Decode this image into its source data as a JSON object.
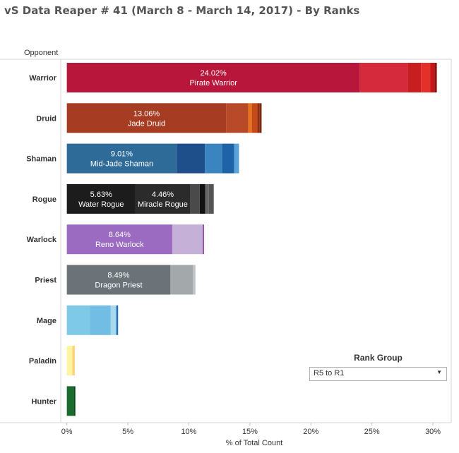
{
  "title": "vS Data Reaper # 41 (March 8 - March 14, 2017) - By Ranks",
  "rank_group": {
    "title": "Rank Group",
    "selected": "R5 to R1",
    "caret_icon": "chevron-down-icon"
  },
  "chart_data": {
    "type": "bar",
    "orientation": "horizontal",
    "stacked": true,
    "ylabel": "Opponent",
    "xlabel": "% of Total Count",
    "xlim": [
      -0.5,
      31.5
    ],
    "xticks": [
      0,
      5,
      10,
      15,
      20,
      25,
      30
    ],
    "xtick_labels": [
      "0%",
      "5%",
      "10%",
      "15%",
      "20%",
      "25%",
      "30%"
    ],
    "grid": false,
    "categories": [
      "Warrior",
      "Druid",
      "Shaman",
      "Rogue",
      "Warlock",
      "Priest",
      "Mage",
      "Paladin",
      "Hunter"
    ],
    "bars": [
      {
        "category": "Warrior",
        "segments": [
          {
            "value": 24.02,
            "color": "#b8163a",
            "value_label": "24.02%",
            "name": "Pirate Warrior"
          },
          {
            "value": 3.9,
            "color": "#d42a3c"
          },
          {
            "value": 1.1,
            "color": "#c71f1f"
          },
          {
            "value": 0.75,
            "color": "#e3302a"
          },
          {
            "value": 0.35,
            "color": "#c41818"
          },
          {
            "value": 0.2,
            "color": "#8a1010"
          }
        ]
      },
      {
        "category": "Druid",
        "segments": [
          {
            "value": 13.06,
            "color": "#a63d22",
            "value_label": "13.06%",
            "name": "Jade Druid"
          },
          {
            "value": 1.8,
            "color": "#b84a2a"
          },
          {
            "value": 0.3,
            "color": "#e5731e"
          },
          {
            "value": 0.45,
            "color": "#c44a1a"
          },
          {
            "value": 0.2,
            "color": "#922e10"
          },
          {
            "value": 0.15,
            "color": "#7a2a10"
          }
        ]
      },
      {
        "category": "Shaman",
        "segments": [
          {
            "value": 9.01,
            "color": "#2e6b99",
            "value_label": "9.01%",
            "name": "Mid-Jade Shaman"
          },
          {
            "value": 2.3,
            "color": "#1f4f8a"
          },
          {
            "value": 1.4,
            "color": "#3a85c0"
          },
          {
            "value": 1.0,
            "color": "#1e63a8"
          },
          {
            "value": 0.4,
            "color": "#5ba3d6"
          }
        ]
      },
      {
        "category": "Rogue",
        "segments": [
          {
            "value": 5.63,
            "color": "#1c1c1c",
            "value_label": "5.63%",
            "name": "Water Rogue"
          },
          {
            "value": 4.46,
            "color": "#2b2b2b",
            "value_label": "4.46%",
            "name": "Miracle Rogue"
          },
          {
            "value": 0.8,
            "color": "#4a4a4a"
          },
          {
            "value": 0.45,
            "color": "#111111"
          },
          {
            "value": 0.3,
            "color": "#666666"
          },
          {
            "value": 0.4,
            "color": "#555555"
          }
        ]
      },
      {
        "category": "Warlock",
        "segments": [
          {
            "value": 8.64,
            "color": "#9b6bc2",
            "value_label": "8.64%",
            "name": "Reno Warlock"
          },
          {
            "value": 2.5,
            "color": "#c5b0d8"
          },
          {
            "value": 0.1,
            "color": "#8a3d9a"
          }
        ]
      },
      {
        "category": "Priest",
        "segments": [
          {
            "value": 8.49,
            "color": "#6b7379",
            "value_label": "8.49%",
            "name": "Dragon Priest"
          },
          {
            "value": 1.85,
            "color": "#a3a8aa"
          },
          {
            "value": 0.2,
            "color": "#bfc3c4"
          }
        ]
      },
      {
        "category": "Mage",
        "segments": [
          {
            "value": 1.9,
            "color": "#7ec8e8"
          },
          {
            "value": 1.7,
            "color": "#72bde3"
          },
          {
            "value": 0.45,
            "color": "#a8d8ec"
          },
          {
            "value": 0.15,
            "color": "#1f6fb8"
          }
        ]
      },
      {
        "category": "Paladin",
        "segments": [
          {
            "value": 0.45,
            "color": "#fff5a0"
          },
          {
            "value": 0.2,
            "color": "#fbd278"
          }
        ]
      },
      {
        "category": "Hunter",
        "segments": [
          {
            "value": 0.6,
            "color": "#1a6b2e"
          },
          {
            "value": 0.1,
            "color": "#0e4a1e"
          }
        ]
      }
    ]
  }
}
